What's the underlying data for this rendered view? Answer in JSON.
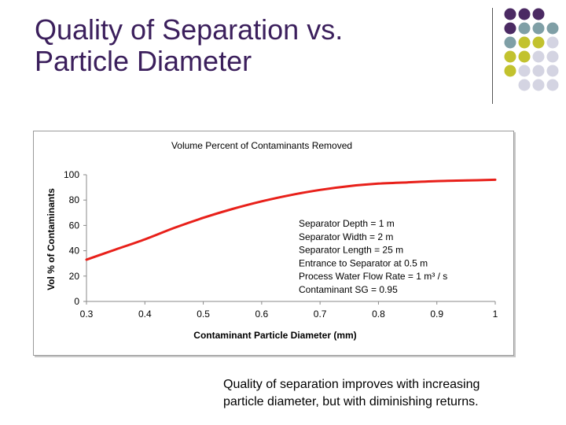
{
  "slide": {
    "title_lines": [
      "Quality of Separation vs.",
      "Particle Diameter"
    ],
    "caption_lines": [
      "Quality of separation improves with increasing",
      "particle diameter, but with diminishing returns."
    ]
  },
  "colors": {
    "title": "#3b1f5c",
    "line": "#e8201a",
    "dot_purple": "#4b2a63",
    "dot_teal": "#7f9fa6",
    "dot_olive": "#c2c22e",
    "dot_lavender": "#d4d4e2"
  },
  "chart_data": {
    "type": "line",
    "title": "Volume Percent of Contaminants Removed",
    "xlabel": "Contaminant Particle Diameter (mm)",
    "ylabel": "Vol % of Contaminants",
    "xlim": [
      0.3,
      1
    ],
    "ylim": [
      0,
      100
    ],
    "x_ticks": [
      "0.3",
      "0.4",
      "0.5",
      "0.6",
      "0.7",
      "0.8",
      "0.9",
      "1"
    ],
    "y_ticks": [
      "0",
      "20",
      "40",
      "60",
      "80",
      "100"
    ],
    "grid": false,
    "series": [
      {
        "x": [
          0.3,
          0.35,
          0.4,
          0.45,
          0.5,
          0.55,
          0.6,
          0.65,
          0.7,
          0.75,
          0.8,
          0.85,
          0.9,
          0.95,
          1.0
        ],
        "values": [
          33,
          41,
          49,
          58,
          66,
          73,
          79,
          84,
          88,
          91,
          93,
          94,
          95,
          95.5,
          96
        ]
      }
    ],
    "annotation_lines": [
      "Separator Depth = 1 m",
      "Separator Width = 2 m",
      "Separator Length = 25 m",
      "Entrance to Separator at 0.5 m",
      "Process Water Flow Rate = 1 m³ / s",
      "Contaminant SG = 0.95"
    ]
  }
}
